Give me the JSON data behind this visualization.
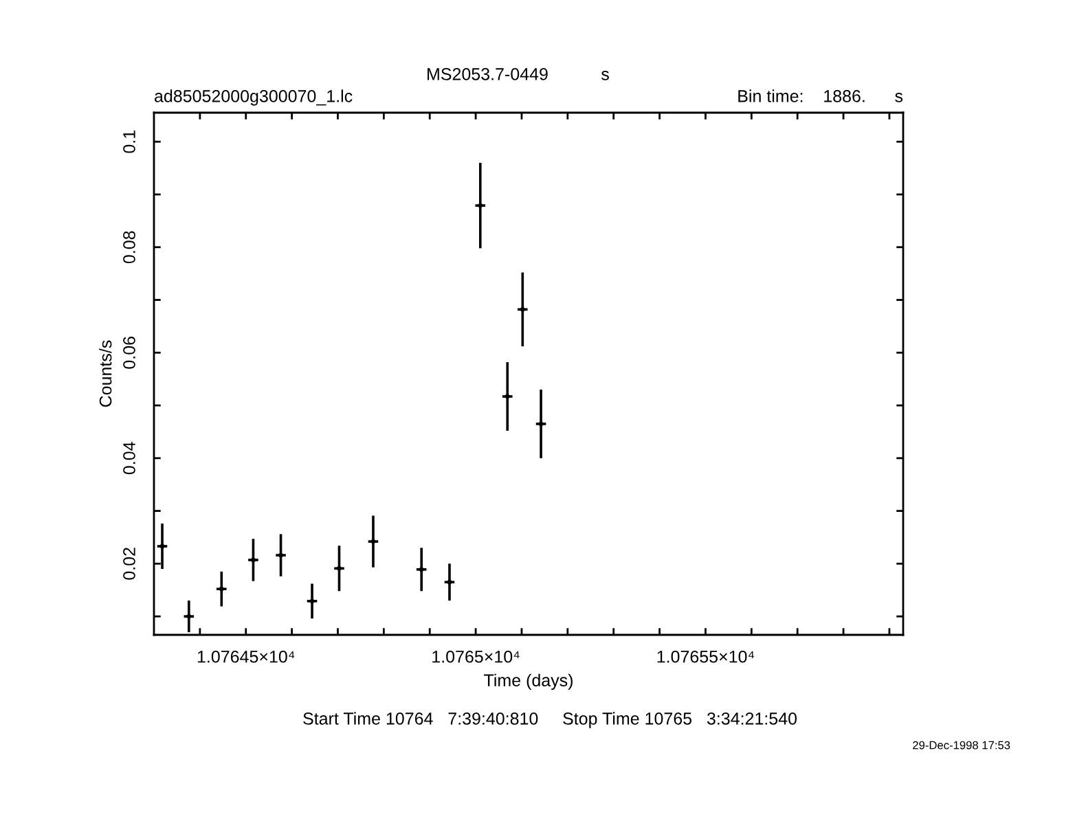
{
  "chart_data": {
    "type": "scatter",
    "title": "MS2053.7-0449           s",
    "xlabel": "Time (days)",
    "ylabel": "Counts/s",
    "annotations": [
      "ad85052000g300070_1.lc",
      "Bin time:    1886.      s",
      "Start Time 10764   7:39:40:810     Stop Time 10765   3:34:21:540",
      "29-Dec-1998 17:53"
    ],
    "grid": false,
    "legend": false,
    "series": [
      {
        "color": "#000000",
        "x": [
          10764.318,
          10764.376,
          10764.447,
          10764.516,
          10764.576,
          10764.644,
          10764.703,
          10764.777,
          10764.882,
          10764.943,
          10765.01,
          10765.069,
          10765.102,
          10765.142
        ],
        "values": [
          0.0233,
          0.01,
          0.0152,
          0.0207,
          0.0216,
          0.0129,
          0.0191,
          0.0242,
          0.0189,
          0.0165,
          0.0879,
          0.0517,
          0.0682,
          0.0465
        ],
        "errors": [
          0.0043,
          0.003,
          0.0033,
          0.004,
          0.004,
          0.0033,
          0.0043,
          0.0049,
          0.0041,
          0.0035,
          0.0081,
          0.0065,
          0.007,
          0.0065
        ],
        "xerrors": [
          0.0109,
          0.0109,
          0.0109,
          0.0109,
          0.0109,
          0.0109,
          0.0109,
          0.0109,
          0.0109,
          0.0109,
          0.0109,
          0.0109,
          0.0109,
          0.0109
        ]
      }
    ],
    "xlim": [
      10764.3,
      10765.93
    ],
    "ylim": [
      0.0065,
      0.1055
    ],
    "xticks": [
      {
        "value": 10764.4,
        "label": null
      },
      {
        "value": 10764.5,
        "label": "1.07645×10⁴"
      },
      {
        "value": 10764.6,
        "label": null
      },
      {
        "value": 10764.7,
        "label": null
      },
      {
        "value": 10764.8,
        "label": null
      },
      {
        "value": 10764.9,
        "label": null
      },
      {
        "value": 10765.0,
        "label": "1.0765×10⁴"
      },
      {
        "value": 10765.1,
        "label": null
      },
      {
        "value": 10765.2,
        "label": null
      },
      {
        "value": 10765.3,
        "label": null
      },
      {
        "value": 10765.4,
        "label": null
      },
      {
        "value": 10765.5,
        "label": "1.07655×10⁴"
      },
      {
        "value": 10765.6,
        "label": null
      },
      {
        "value": 10765.7,
        "label": null
      },
      {
        "value": 10765.8,
        "label": null
      },
      {
        "value": 10765.9,
        "label": null
      }
    ],
    "yticks": [
      {
        "value": 0.01,
        "label": null
      },
      0.02,
      {
        "value": 0.03,
        "label": null
      },
      0.04,
      {
        "value": 0.05,
        "label": null
      },
      0.06,
      {
        "value": 0.07,
        "label": null
      },
      0.08,
      {
        "value": 0.09,
        "label": null
      },
      0.1
    ]
  }
}
